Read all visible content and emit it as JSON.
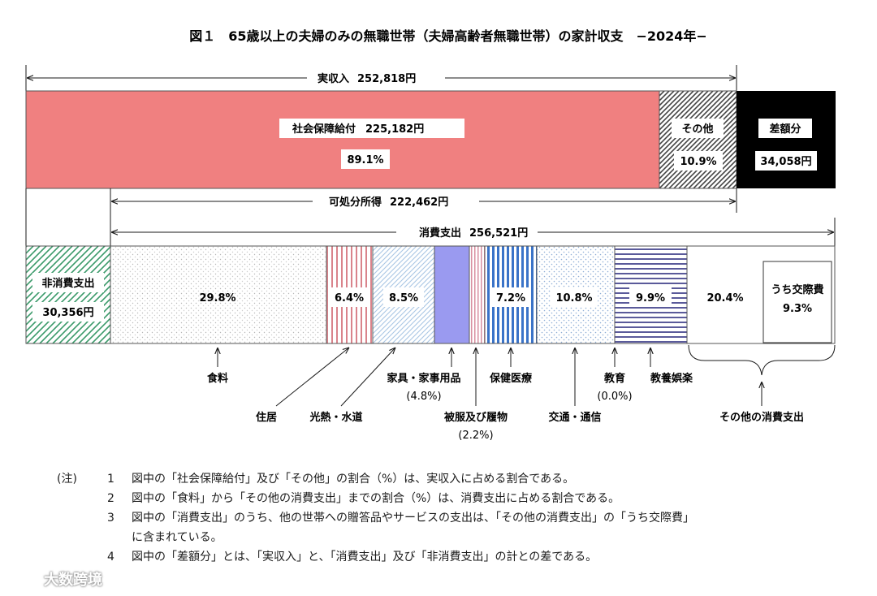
{
  "chart_data": {
    "type": "bar",
    "title": "図１　65歳以上の夫婦のみの無職世帯（夫婦高齢者無職世帯）の家計収支　−2024年−",
    "income": {
      "total_label": "実収入",
      "total_value": "252,818円",
      "segments": [
        {
          "label": "社会保障給付",
          "amount": "225,182円",
          "percent": "89.1%",
          "value": 225182,
          "color": "#f08080"
        },
        {
          "label": "その他",
          "percent": "10.9%",
          "value": 27636,
          "color": "#555555"
        }
      ],
      "deficit": {
        "label": "差額分",
        "amount": "34,058円",
        "value": 34058,
        "color": "#000000"
      },
      "disposable_label": "可処分所得",
      "disposable_value": "222,462円"
    },
    "expenditure": {
      "consumption_label": "消費支出",
      "consumption_value": "256,521円",
      "non_consumption": {
        "label": "非消費支出",
        "amount": "30,356円",
        "value": 30356,
        "color": "#2e8b57"
      },
      "categories": [
        {
          "label": "食料",
          "percent": "29.8%",
          "value": 29.8,
          "color": "#c8c8c8"
        },
        {
          "label": "住居",
          "percent": "6.4%",
          "value": 6.4,
          "color": "#d9838b"
        },
        {
          "label": "光熱・水道",
          "percent": "8.5%",
          "value": 8.5,
          "color": "#8fb3d6"
        },
        {
          "label": "家具・家事用品",
          "percent": "(4.8%)",
          "value": 4.8,
          "color": "#8f8fef"
        },
        {
          "label": "被服及び履物",
          "percent": "(2.2%)",
          "value": 2.2,
          "color": "#d88fa0"
        },
        {
          "label": "保健医療",
          "percent": "7.2%",
          "value": 7.2,
          "color": "#3a73c8"
        },
        {
          "label": "交通・通信",
          "percent": "10.8%",
          "value": 10.8,
          "color": "#8faed6"
        },
        {
          "label": "教育",
          "percent": "(0.0%)",
          "value": 0.0,
          "color": "#333333"
        },
        {
          "label": "教養娯楽",
          "percent": "9.9%",
          "value": 9.9,
          "color": "#5a5a9a"
        },
        {
          "label": "その他の消費支出",
          "percent": "20.4%",
          "value": 20.4,
          "color": "#ffffff"
        }
      ],
      "subitem": {
        "label": "うち交際費",
        "percent": "9.3%"
      }
    }
  },
  "notes": {
    "heading": "(注)",
    "items": [
      {
        "num": "1",
        "text": "図中の「社会保障給付」及び「その他」の割合（%）は、実収入に占める割合である。"
      },
      {
        "num": "2",
        "text": "図中の「食料」から「その他の消費支出」までの割合（%）は、消費支出に占める割合である。"
      },
      {
        "num": "3",
        "text": "図中の「消費支出」のうち、他の世帯への贈答品やサービスの支出は、「その他の消費支出」の「うち交際費」",
        "cont": "に含まれている。"
      },
      {
        "num": "4",
        "text": "図中の「差額分」とは、「実収入」と、「消費支出」及び「非消費支出」の計との差である。"
      }
    ]
  },
  "watermark": "大数跨境"
}
